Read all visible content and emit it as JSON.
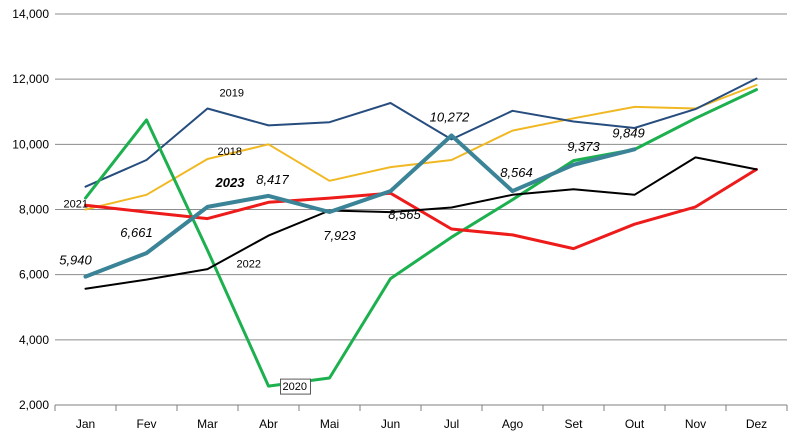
{
  "chart_data": {
    "type": "line",
    "categories": [
      "Jan",
      "Fev",
      "Mar",
      "Abr",
      "Mai",
      "Jun",
      "Jul",
      "Ago",
      "Set",
      "Out",
      "Nov",
      "Dez"
    ],
    "ylim": [
      2000,
      14000
    ],
    "yticks": [
      2000,
      4000,
      6000,
      8000,
      10000,
      12000,
      14000
    ],
    "ytick_labels": [
      "2,000",
      "4,000",
      "6,000",
      "8,000",
      "10,000",
      "12,000",
      "14,000"
    ],
    "grid": "horizontal",
    "legend": "none",
    "series": [
      {
        "name": "2018",
        "color": "#F0B823",
        "width": 2,
        "values": [
          8000,
          8450,
          9550,
          10000,
          8880,
          9300,
          9520,
          10420,
          10800,
          11150,
          11100,
          11820
        ]
      },
      {
        "name": "2019",
        "color": "#264D7E",
        "width": 2,
        "values": [
          8700,
          9520,
          11100,
          10580,
          10680,
          11270,
          10150,
          11030,
          10700,
          10500,
          11080,
          12020
        ]
      },
      {
        "name": "2020",
        "color": "#1DB04F",
        "width": 3,
        "values": [
          8350,
          10750,
          6750,
          2580,
          2830,
          5880,
          7150,
          8300,
          9500,
          9840,
          10800,
          11680
        ]
      },
      {
        "name": "2021",
        "color": "#EE1B1B",
        "width": 3,
        "values": [
          8130,
          7920,
          7720,
          8220,
          8350,
          8500,
          7400,
          7220,
          6800,
          7550,
          8080,
          9230
        ]
      },
      {
        "name": "2022",
        "color": "#000000",
        "width": 2,
        "values": [
          5570,
          5850,
          6170,
          7200,
          7970,
          7920,
          8060,
          8450,
          8620,
          8450,
          9600,
          9230
        ]
      },
      {
        "name": "2023",
        "color": "#3B8497",
        "width": 4,
        "values": [
          5940,
          6661,
          8080,
          8417,
          7923,
          8565,
          10272,
          8564,
          9373,
          9849,
          null,
          null
        ]
      }
    ],
    "series_labels": [
      {
        "series": "2018",
        "text": "2018"
      },
      {
        "series": "2019",
        "text": "2019"
      },
      {
        "series": "2020",
        "text": "2020",
        "boxed": true
      },
      {
        "series": "2021",
        "text": "2021"
      },
      {
        "series": "2022",
        "text": "2022"
      },
      {
        "series": "2023",
        "text": "2023",
        "bold": true
      }
    ],
    "data_labels": [
      {
        "series": "2023",
        "index": 0,
        "text": "5,940"
      },
      {
        "series": "2023",
        "index": 1,
        "text": "6,661"
      },
      {
        "series": "2023",
        "index": 3,
        "text": "8,417"
      },
      {
        "series": "2023",
        "index": 4,
        "text": "7,923"
      },
      {
        "series": "2023",
        "index": 5,
        "text": "8,565"
      },
      {
        "series": "2023",
        "index": 6,
        "text": "10,272"
      },
      {
        "series": "2023",
        "index": 7,
        "text": "8,564"
      },
      {
        "series": "2023",
        "index": 8,
        "text": "9,373"
      },
      {
        "series": "2023",
        "index": 9,
        "text": "9,849"
      }
    ]
  }
}
